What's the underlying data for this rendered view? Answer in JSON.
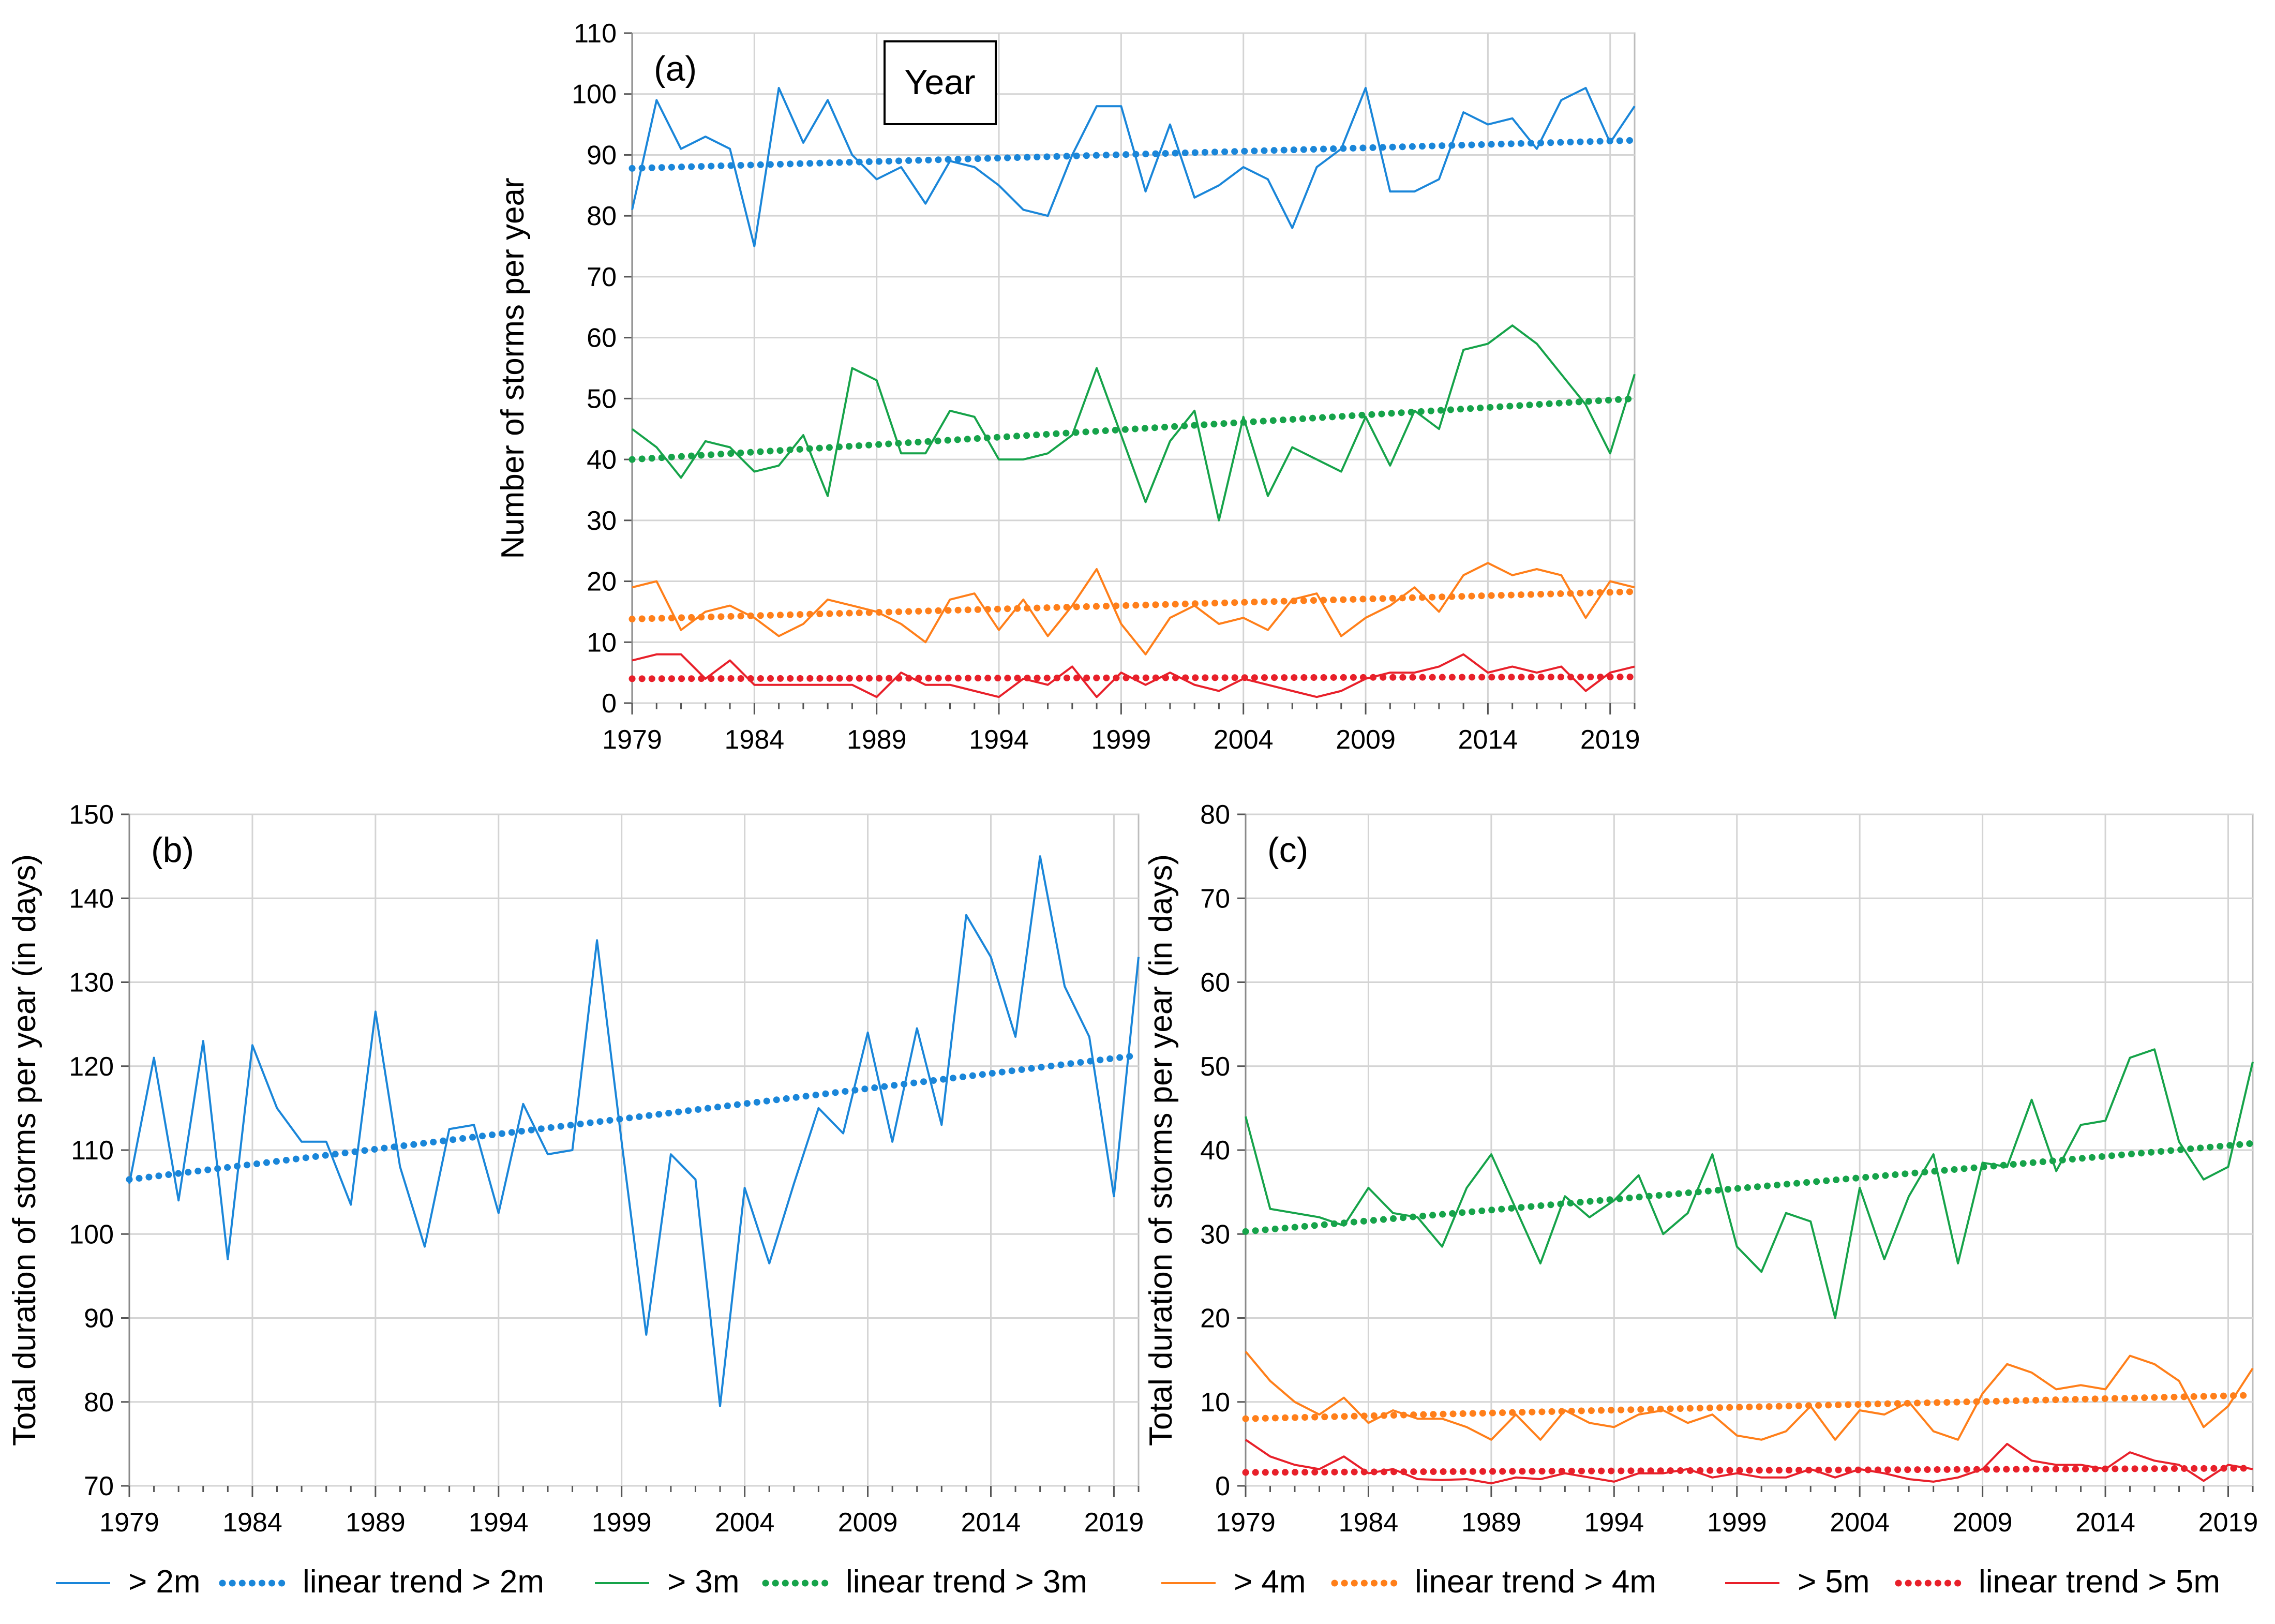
{
  "colors": {
    "gt2m": "#1a86d9",
    "gt3m": "#16a34a",
    "gt4m": "#ff7f1a",
    "gt5m": "#e8202a",
    "grid": "#d4d4d4"
  },
  "legend": [
    {
      "label": "> 2m",
      "series": "gt2m",
      "style": "line"
    },
    {
      "label": "linear trend > 2m",
      "series": "gt2m",
      "style": "dotted"
    },
    {
      "label": "> 3m",
      "series": "gt3m",
      "style": "line"
    },
    {
      "label": "linear trend > 3m",
      "series": "gt3m",
      "style": "dotted"
    },
    {
      "label": "> 4m",
      "series": "gt4m",
      "style": "line"
    },
    {
      "label": "linear trend > 4m",
      "series": "gt4m",
      "style": "dotted"
    },
    {
      "label": "> 5m",
      "series": "gt5m",
      "style": "line"
    },
    {
      "label": "linear trend > 5m",
      "series": "gt5m",
      "style": "dotted"
    }
  ],
  "chart_data": [
    {
      "id": "a",
      "type": "line",
      "panel_label": "(a)",
      "box_title": "Year",
      "ylabel": "Number of storms per year",
      "xlabel": "",
      "x_start": 1979,
      "x_end": 2020,
      "xticks": [
        1979,
        1984,
        1989,
        1994,
        1999,
        2004,
        2009,
        2014,
        2019
      ],
      "ylim": [
        0,
        110
      ],
      "yticks": [
        0,
        10,
        20,
        30,
        40,
        50,
        60,
        70,
        80,
        90,
        100,
        110
      ],
      "series": [
        {
          "key": "gt2m",
          "name": "> 2m",
          "values": [
            81,
            99,
            91,
            93,
            91,
            75,
            101,
            92,
            99,
            90,
            86,
            88,
            82,
            89,
            88,
            85,
            81,
            80,
            90,
            98,
            98,
            84,
            95,
            83,
            85,
            88,
            86,
            78,
            88,
            91,
            101,
            84,
            84,
            86,
            97,
            95,
            96,
            91,
            99,
            101,
            92,
            98
          ],
          "trend": [
            87.8,
            92.4
          ]
        },
        {
          "key": "gt3m",
          "name": "> 3m",
          "values": [
            45,
            42,
            37,
            43,
            42,
            38,
            39,
            44,
            34,
            55,
            53,
            41,
            41,
            48,
            47,
            40,
            40,
            41,
            44,
            55,
            44,
            33,
            43,
            48,
            30,
            47,
            34,
            42,
            40,
            38,
            47,
            39,
            48,
            45,
            58,
            59,
            62,
            59,
            54,
            49,
            41,
            54
          ],
          "trend": [
            40.0,
            50.0
          ]
        },
        {
          "key": "gt4m",
          "name": "> 4m",
          "values": [
            19,
            20,
            12,
            15,
            16,
            14,
            11,
            13,
            17,
            16,
            15,
            13,
            10,
            17,
            18,
            12,
            17,
            11,
            16,
            22,
            13,
            8,
            14,
            16,
            13,
            14,
            12,
            17,
            18,
            11,
            14,
            16,
            19,
            15,
            21,
            23,
            21,
            22,
            21,
            14,
            20,
            19
          ],
          "trend": [
            13.8,
            18.3
          ]
        },
        {
          "key": "gt5m",
          "name": "> 5m",
          "values": [
            7,
            8,
            8,
            4,
            7,
            3,
            3,
            3,
            3,
            3,
            1,
            5,
            3,
            3,
            2,
            1,
            4,
            3,
            6,
            1,
            5,
            3,
            5,
            3,
            2,
            4,
            3,
            2,
            1,
            2,
            4,
            5,
            5,
            6,
            8,
            5,
            6,
            5,
            6,
            2,
            5,
            6
          ],
          "trend": [
            4.0,
            4.3
          ]
        }
      ]
    },
    {
      "id": "b",
      "type": "line",
      "panel_label": "(b)",
      "ylabel": "Total duration of storms per year (in days)",
      "xlabel": "",
      "x_start": 1979,
      "x_end": 2020,
      "xticks": [
        1979,
        1984,
        1989,
        1994,
        1999,
        2004,
        2009,
        2014,
        2019
      ],
      "ylim": [
        70,
        150
      ],
      "yticks": [
        70,
        80,
        90,
        100,
        110,
        120,
        130,
        140,
        150
      ],
      "series": [
        {
          "key": "gt2m",
          "name": "> 2m",
          "values": [
            106,
            121,
            104,
            123,
            97,
            122.5,
            115,
            111,
            111,
            103.5,
            126.5,
            108,
            98.5,
            112.5,
            113,
            102.5,
            115.5,
            109.5,
            110,
            135,
            111,
            88,
            109.5,
            106.5,
            79.5,
            105.5,
            96.5,
            106,
            115,
            112,
            124,
            111,
            124.5,
            113,
            138,
            133,
            123.5,
            145,
            129.5,
            123.5,
            104.5,
            133
          ],
          "trend": [
            106.5,
            121.3
          ]
        }
      ]
    },
    {
      "id": "c",
      "type": "line",
      "panel_label": "(c)",
      "ylabel": "Total duration of storms per year (in days)",
      "xlabel": "",
      "x_start": 1979,
      "x_end": 2020,
      "xticks": [
        1979,
        1984,
        1989,
        1994,
        1999,
        2004,
        2009,
        2014,
        2019
      ],
      "ylim": [
        0,
        80
      ],
      "yticks": [
        0,
        10,
        20,
        30,
        40,
        50,
        60,
        70,
        80
      ],
      "series": [
        {
          "key": "gt3m",
          "name": "> 3m",
          "values": [
            44,
            33,
            32.5,
            32,
            31,
            35.5,
            32.5,
            32,
            28.5,
            35.5,
            39.5,
            33,
            26.5,
            34.5,
            32,
            34,
            37,
            30,
            32.5,
            39.5,
            28.5,
            25.5,
            32.5,
            31.5,
            20,
            35.5,
            27,
            34.5,
            39.5,
            26.5,
            38.5,
            38,
            46,
            37.5,
            43,
            43.5,
            51,
            52,
            41,
            36.5,
            38,
            50.5
          ],
          "trend": [
            30.3,
            40.8
          ]
        },
        {
          "key": "gt4m",
          "name": "> 4m",
          "values": [
            16,
            12.5,
            10,
            8.5,
            10.5,
            7.5,
            9,
            8,
            8,
            7,
            5.5,
            8.5,
            5.5,
            9,
            7.5,
            7,
            8.5,
            9,
            7.5,
            8.5,
            6,
            5.5,
            6.5,
            9.5,
            5.5,
            9,
            8.5,
            10,
            6.5,
            5.5,
            11,
            14.5,
            13.5,
            11.5,
            12,
            11.5,
            15.5,
            14.5,
            12.5,
            7,
            9.5,
            14
          ],
          "trend": [
            8.0,
            10.8
          ]
        },
        {
          "key": "gt5m",
          "name": "> 5m",
          "values": [
            5.5,
            3.5,
            2.5,
            2,
            3.5,
            1.5,
            2,
            0.8,
            0.7,
            0.8,
            0.3,
            1,
            0.8,
            1.5,
            1,
            0.5,
            1.5,
            1.5,
            2,
            1,
            1.5,
            1,
            1,
            2,
            1,
            2,
            1.5,
            0.8,
            0.5,
            1,
            2,
            5,
            3,
            2.5,
            2.5,
            2,
            4,
            3,
            2.5,
            0.6,
            2.5,
            2
          ],
          "trend": [
            1.6,
            2.1
          ]
        }
      ]
    }
  ]
}
